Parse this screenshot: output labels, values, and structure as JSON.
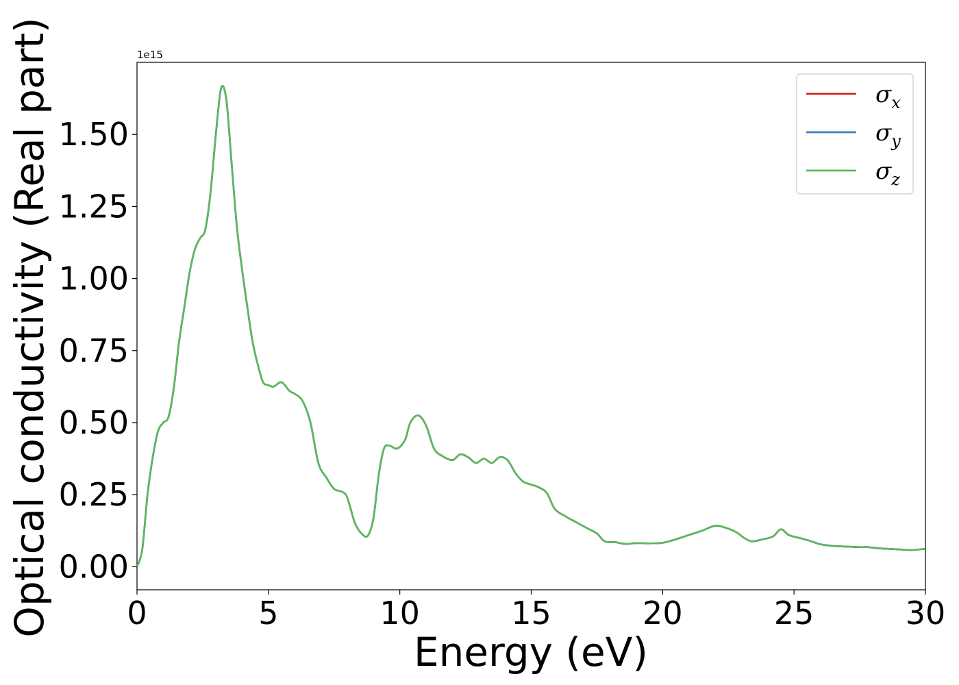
{
  "chart_data": {
    "type": "line",
    "xlabel": "Energy (eV)",
    "ylabel": "Optical conductivity (Real part)",
    "y_offset_label": "1e15",
    "xlim": [
      0,
      30
    ],
    "ylim": [
      -0.08,
      1.75
    ],
    "grid": false,
    "legend_position": "top-right",
    "x_ticks": [
      0,
      5,
      10,
      15,
      20,
      25,
      30
    ],
    "x_tick_labels": [
      "0",
      "5",
      "10",
      "15",
      "20",
      "25",
      "30"
    ],
    "y_ticks": [
      0.0,
      0.25,
      0.5,
      0.75,
      1.0,
      1.25,
      1.5
    ],
    "y_tick_labels": [
      "0.00",
      "0.25",
      "0.50",
      "0.75",
      "1.00",
      "1.25",
      "1.50"
    ],
    "x": [
      0,
      0.2,
      0.4,
      0.6,
      0.8,
      1.0,
      1.2,
      1.4,
      1.6,
      1.8,
      2.0,
      2.2,
      2.4,
      2.6,
      2.8,
      3.0,
      3.2,
      3.4,
      3.6,
      3.8,
      4.0,
      4.2,
      4.4,
      4.6,
      4.8,
      5.0,
      5.2,
      5.5,
      5.8,
      6.0,
      6.3,
      6.6,
      6.9,
      7.2,
      7.5,
      7.8,
      8.0,
      8.3,
      8.6,
      8.8,
      9.0,
      9.2,
      9.4,
      9.6,
      9.9,
      10.2,
      10.4,
      10.7,
      11.0,
      11.3,
      11.6,
      12.0,
      12.3,
      12.6,
      12.9,
      13.2,
      13.5,
      13.8,
      14.1,
      14.4,
      14.7,
      15.0,
      15.3,
      15.6,
      15.9,
      16.3,
      16.7,
      17.1,
      17.5,
      17.8,
      18.2,
      18.6,
      19.0,
      19.5,
      20.0,
      20.5,
      21.0,
      21.5,
      22.0,
      22.4,
      22.8,
      23.1,
      23.4,
      23.8,
      24.2,
      24.5,
      24.8,
      25.2,
      25.6,
      26.0,
      26.5,
      27.0,
      27.5,
      27.8,
      28.2,
      28.6,
      29.0,
      29.5,
      30.0
    ],
    "series": [
      {
        "name": "σx",
        "color": "#d62728",
        "values": [
          0.0,
          0.06,
          0.25,
          0.38,
          0.47,
          0.5,
          0.52,
          0.62,
          0.78,
          0.9,
          1.02,
          1.1,
          1.14,
          1.17,
          1.3,
          1.5,
          1.66,
          1.62,
          1.4,
          1.18,
          1.03,
          0.9,
          0.78,
          0.7,
          0.64,
          0.63,
          0.625,
          0.64,
          0.61,
          0.6,
          0.575,
          0.5,
          0.36,
          0.31,
          0.27,
          0.26,
          0.24,
          0.15,
          0.11,
          0.11,
          0.17,
          0.32,
          0.41,
          0.42,
          0.41,
          0.44,
          0.5,
          0.525,
          0.49,
          0.41,
          0.385,
          0.37,
          0.39,
          0.38,
          0.36,
          0.375,
          0.36,
          0.38,
          0.37,
          0.325,
          0.295,
          0.285,
          0.275,
          0.255,
          0.2,
          0.175,
          0.155,
          0.135,
          0.115,
          0.088,
          0.085,
          0.079,
          0.082,
          0.081,
          0.083,
          0.095,
          0.11,
          0.125,
          0.142,
          0.135,
          0.12,
          0.1,
          0.088,
          0.095,
          0.105,
          0.13,
          0.11,
          0.1,
          0.09,
          0.078,
          0.072,
          0.07,
          0.068,
          0.068,
          0.064,
          0.062,
          0.06,
          0.058,
          0.062
        ]
      },
      {
        "name": "σy",
        "color": "#3a7ebf",
        "values": [
          0.0,
          0.06,
          0.25,
          0.38,
          0.47,
          0.5,
          0.52,
          0.62,
          0.78,
          0.9,
          1.02,
          1.1,
          1.14,
          1.17,
          1.3,
          1.5,
          1.66,
          1.62,
          1.4,
          1.18,
          1.03,
          0.9,
          0.78,
          0.7,
          0.64,
          0.63,
          0.625,
          0.64,
          0.61,
          0.6,
          0.575,
          0.5,
          0.36,
          0.31,
          0.27,
          0.26,
          0.24,
          0.15,
          0.11,
          0.11,
          0.17,
          0.32,
          0.41,
          0.42,
          0.41,
          0.44,
          0.5,
          0.525,
          0.49,
          0.41,
          0.385,
          0.37,
          0.39,
          0.38,
          0.36,
          0.375,
          0.36,
          0.38,
          0.37,
          0.325,
          0.295,
          0.285,
          0.275,
          0.255,
          0.2,
          0.175,
          0.155,
          0.135,
          0.115,
          0.088,
          0.085,
          0.079,
          0.082,
          0.081,
          0.083,
          0.095,
          0.11,
          0.125,
          0.142,
          0.135,
          0.12,
          0.1,
          0.088,
          0.095,
          0.105,
          0.13,
          0.11,
          0.1,
          0.09,
          0.078,
          0.072,
          0.07,
          0.068,
          0.068,
          0.064,
          0.062,
          0.06,
          0.058,
          0.062
        ]
      },
      {
        "name": "σz",
        "color": "#5cb85c",
        "values": [
          0.0,
          0.06,
          0.25,
          0.38,
          0.47,
          0.5,
          0.52,
          0.62,
          0.78,
          0.9,
          1.02,
          1.1,
          1.14,
          1.17,
          1.3,
          1.5,
          1.66,
          1.62,
          1.4,
          1.18,
          1.03,
          0.9,
          0.78,
          0.7,
          0.64,
          0.63,
          0.625,
          0.64,
          0.61,
          0.6,
          0.575,
          0.5,
          0.36,
          0.31,
          0.27,
          0.26,
          0.24,
          0.15,
          0.11,
          0.11,
          0.17,
          0.32,
          0.41,
          0.42,
          0.41,
          0.44,
          0.5,
          0.525,
          0.49,
          0.41,
          0.385,
          0.37,
          0.39,
          0.38,
          0.36,
          0.375,
          0.36,
          0.38,
          0.37,
          0.325,
          0.295,
          0.285,
          0.275,
          0.255,
          0.2,
          0.175,
          0.155,
          0.135,
          0.115,
          0.088,
          0.085,
          0.079,
          0.082,
          0.081,
          0.083,
          0.095,
          0.11,
          0.125,
          0.142,
          0.135,
          0.12,
          0.1,
          0.088,
          0.095,
          0.105,
          0.13,
          0.11,
          0.1,
          0.09,
          0.078,
          0.072,
          0.07,
          0.068,
          0.068,
          0.064,
          0.062,
          0.06,
          0.058,
          0.062
        ]
      }
    ],
    "legend": [
      {
        "symbol": "σ",
        "subscript": "x",
        "color": "#d62728"
      },
      {
        "symbol": "σ",
        "subscript": "y",
        "color": "#3a7ebf"
      },
      {
        "symbol": "σ",
        "subscript": "z",
        "color": "#5cb85c"
      }
    ]
  }
}
